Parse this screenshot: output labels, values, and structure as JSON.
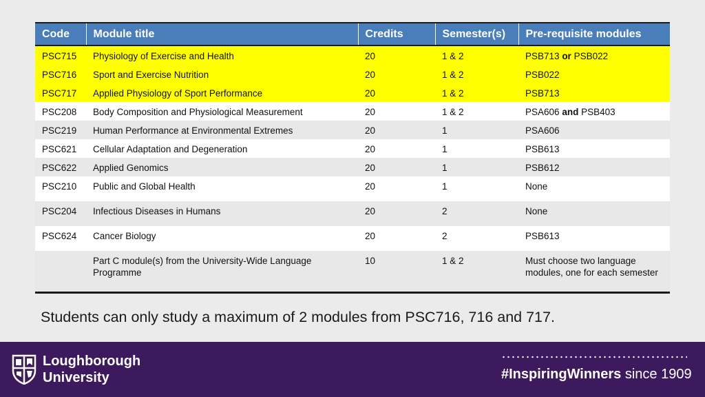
{
  "table": {
    "headers": [
      "Code",
      "Module title",
      "Credits",
      "Semester(s)",
      "Pre-requisite modules"
    ],
    "rows": [
      {
        "code": "PSC715",
        "title": "Physiology of Exercise and Health",
        "credits": "20",
        "semester": "1 & 2",
        "prereq_a": "PSB713",
        "prereq_joiner": "or",
        "prereq_b": "PSB022"
      },
      {
        "code": "PSC716",
        "title": "Sport and Exercise Nutrition",
        "credits": "20",
        "semester": "1 & 2",
        "prereq": "PSB022"
      },
      {
        "code": "PSC717",
        "title": "Applied Physiology of Sport Performance",
        "credits": "20",
        "semester": "1 & 2",
        "prereq": "PSB713"
      },
      {
        "code": "PSC208",
        "title": "Body Composition and Physiological Measurement",
        "credits": "20",
        "semester": "1 & 2",
        "prereq_a": "PSA606",
        "prereq_joiner": "and",
        "prereq_b": "PSB403"
      },
      {
        "code": "PSC219",
        "title": "Human Performance at Environmental Extremes",
        "credits": "20",
        "semester": "1",
        "prereq": "PSA606"
      },
      {
        "code": "PSC621",
        "title": "Cellular Adaptation and Degeneration",
        "credits": "20",
        "semester": "1",
        "prereq": "PSB613"
      },
      {
        "code": "PSC622",
        "title": "Applied Genomics",
        "credits": "20",
        "semester": "1",
        "prereq": "PSB612"
      },
      {
        "code": "PSC210",
        "title": "Public and Global Health",
        "credits": "20",
        "semester": "1",
        "prereq": "None"
      },
      {
        "code": "PSC204",
        "title": "Infectious Diseases in Humans",
        "credits": "20",
        "semester": "2",
        "prereq": "None"
      },
      {
        "code": "PSC624",
        "title": "Cancer Biology",
        "credits": "20",
        "semester": "2",
        "prereq": "PSB613"
      },
      {
        "code": "",
        "title": "Part C module(s) from the University-Wide Language Programme",
        "credits": "10",
        "semester": "1 & 2",
        "prereq": "Must choose two language modules, one for each semester"
      }
    ]
  },
  "note": "Students can only study a maximum of 2 modules from PSC716, 716 and 717.",
  "footer": {
    "university_line1": "Loughborough",
    "university_line2": "University",
    "tagline_bold": "#InspiringWinners",
    "tagline_regular": " since 1909"
  },
  "colors": {
    "header_blue": "#4a7ebb",
    "highlight_yellow": "#ffff00",
    "footer_purple": "#3d1a5e"
  }
}
